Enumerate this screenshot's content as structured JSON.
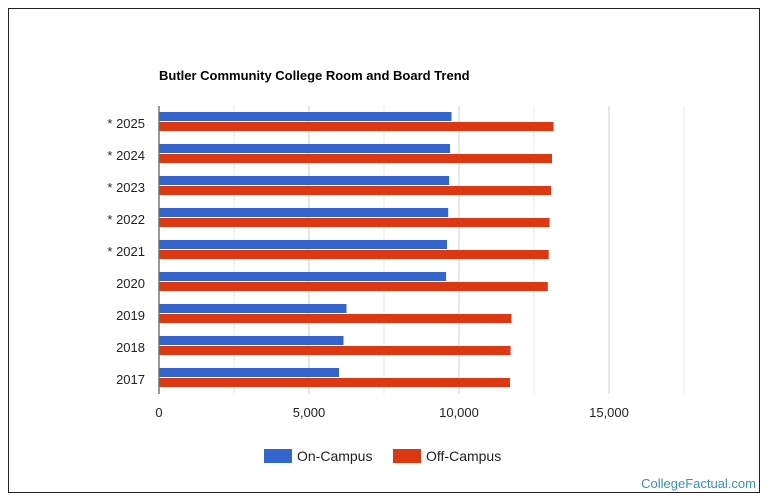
{
  "chart_data": {
    "type": "bar",
    "orientation": "horizontal",
    "title": "Butler Community College Room and Board Trend",
    "categories": [
      "* 2025",
      "* 2024",
      "* 2023",
      "* 2022",
      "* 2021",
      "2020",
      "2019",
      "2018",
      "2017"
    ],
    "series": [
      {
        "name": "On-Campus",
        "color": "#3366cc",
        "values": [
          9750,
          9700,
          9670,
          9640,
          9600,
          9570,
          6250,
          6150,
          6000
        ]
      },
      {
        "name": "Off-Campus",
        "color": "#dc3912",
        "values": [
          13150,
          13100,
          13070,
          13020,
          12990,
          12960,
          11750,
          11720,
          11700
        ]
      }
    ],
    "xlim": [
      0,
      20000
    ],
    "xticks": [
      0,
      5000,
      10000,
      15000
    ],
    "xtick_labels": [
      "0",
      "5,000",
      "10,000",
      "15,000"
    ],
    "grid": true,
    "legend_position": "bottom"
  },
  "credit": "CollegeFactual.com"
}
